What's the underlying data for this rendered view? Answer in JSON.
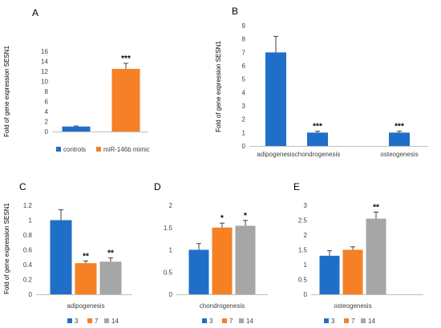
{
  "chart_data": [
    {
      "panel": "A",
      "type": "bar",
      "ylabel": "Fold of gene expression SESN1",
      "ylim": [
        0,
        16
      ],
      "yticks": [
        0,
        2,
        4,
        6,
        8,
        10,
        12,
        14,
        16
      ],
      "grid": false,
      "legend_position": "bottom",
      "categories": [
        ""
      ],
      "series": [
        {
          "name": "controls",
          "color": "#1f6fc9",
          "values": [
            1.0
          ],
          "errors": [
            0.1
          ],
          "significance": [
            ""
          ]
        },
        {
          "name": "miR-146b mimic",
          "color": "#f58025",
          "values": [
            12.5
          ],
          "errors": [
            1.1
          ],
          "significance": [
            "***"
          ]
        }
      ]
    },
    {
      "panel": "B",
      "type": "bar",
      "ylabel": "Fold of gene expression SESN1",
      "ylim": [
        0,
        9
      ],
      "yticks": [
        0,
        1,
        2,
        3,
        4,
        5,
        6,
        7,
        8,
        9
      ],
      "grid": false,
      "categories": [
        "adipogenesis",
        "chondrogenesis",
        "osteogenesis"
      ],
      "series": [
        {
          "name": "",
          "color": "#1f6fc9",
          "values": [
            7.0,
            1.0,
            1.0
          ],
          "errors": [
            1.2,
            0.1,
            0.1
          ],
          "significance": [
            "",
            "***",
            "***"
          ]
        }
      ]
    },
    {
      "panel": "C",
      "type": "bar",
      "ylabel": "Fold of gene expression SESN1",
      "ylim": [
        0,
        1.2
      ],
      "yticks": [
        0,
        0.2,
        0.4,
        0.6,
        0.8,
        1.0,
        1.2
      ],
      "grid": false,
      "legend_position": "bottom",
      "categories": [
        "adipogenesis"
      ],
      "series": [
        {
          "name": "3",
          "color": "#1f6fc9",
          "values": [
            1.0
          ],
          "errors": [
            0.14
          ],
          "significance": [
            ""
          ]
        },
        {
          "name": "7",
          "color": "#f58025",
          "values": [
            0.42
          ],
          "errors": [
            0.03
          ],
          "significance": [
            "**"
          ]
        },
        {
          "name": "14",
          "color": "#a6a6a6",
          "values": [
            0.44
          ],
          "errors": [
            0.05
          ],
          "significance": [
            "**"
          ]
        }
      ]
    },
    {
      "panel": "D",
      "type": "bar",
      "ylabel": "",
      "ylim": [
        0,
        2
      ],
      "yticks": [
        0,
        0.5,
        1.0,
        1.5,
        2.0
      ],
      "grid": false,
      "legend_position": "bottom",
      "categories": [
        "chondrogenesis"
      ],
      "series": [
        {
          "name": "3",
          "color": "#1f6fc9",
          "values": [
            1.0
          ],
          "errors": [
            0.14
          ],
          "significance": [
            ""
          ]
        },
        {
          "name": "7",
          "color": "#f58025",
          "values": [
            1.5
          ],
          "errors": [
            0.1
          ],
          "significance": [
            "*"
          ]
        },
        {
          "name": "14",
          "color": "#a6a6a6",
          "values": [
            1.54
          ],
          "errors": [
            0.12
          ],
          "significance": [
            "*"
          ]
        }
      ]
    },
    {
      "panel": "E",
      "type": "bar",
      "ylabel": "",
      "ylim": [
        0,
        3
      ],
      "yticks": [
        0,
        0.5,
        1.0,
        1.5,
        2.0,
        2.5,
        3.0
      ],
      "grid": false,
      "legend_position": "bottom",
      "categories": [
        "osteogenesis"
      ],
      "series": [
        {
          "name": "3",
          "color": "#1f6fc9",
          "values": [
            1.3
          ],
          "errors": [
            0.17
          ],
          "significance": [
            ""
          ]
        },
        {
          "name": "7",
          "color": "#f58025",
          "values": [
            1.5
          ],
          "errors": [
            0.1
          ],
          "significance": [
            ""
          ]
        },
        {
          "name": "14",
          "color": "#a6a6a6",
          "values": [
            2.55
          ],
          "errors": [
            0.22
          ],
          "significance": [
            "**"
          ]
        }
      ]
    }
  ]
}
